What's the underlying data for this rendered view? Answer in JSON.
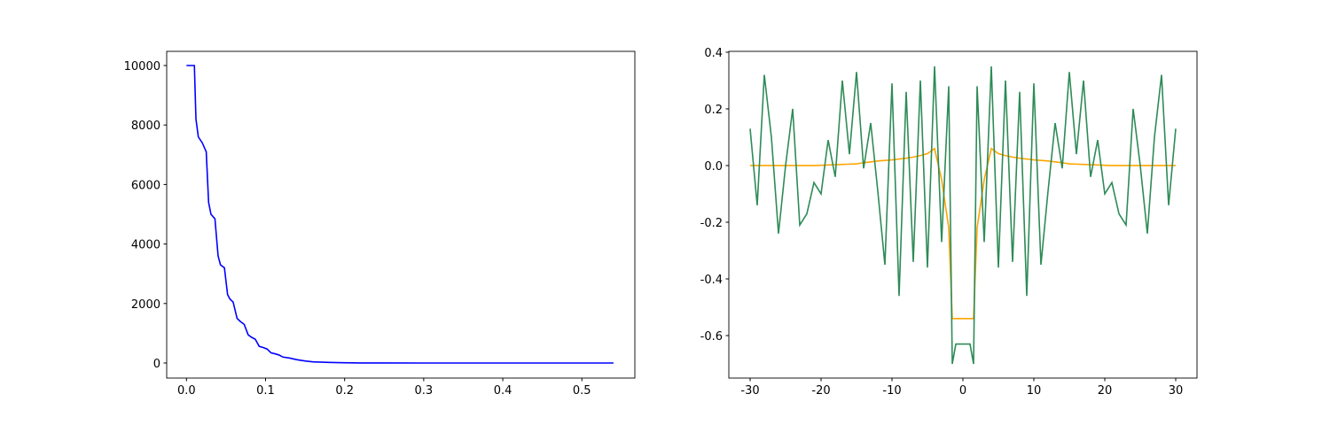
{
  "chart_data": [
    {
      "type": "line",
      "x": [
        0,
        0.01,
        0.012,
        0.015,
        0.02,
        0.025,
        0.028,
        0.031,
        0.036,
        0.04,
        0.043,
        0.048,
        0.052,
        0.055,
        0.059,
        0.064,
        0.068,
        0.073,
        0.078,
        0.082,
        0.087,
        0.092,
        0.097,
        0.102,
        0.107,
        0.112,
        0.117,
        0.122,
        0.13,
        0.14,
        0.15,
        0.16,
        0.18,
        0.2,
        0.22,
        0.25,
        0.3,
        0.4,
        0.54
      ],
      "series": [
        {
          "color": "#0000ff",
          "values": [
            10000,
            10000,
            8200,
            7600,
            7400,
            7100,
            5400,
            5000,
            4850,
            3600,
            3300,
            3200,
            2300,
            2150,
            2050,
            1500,
            1400,
            1300,
            950,
            870,
            800,
            560,
            520,
            470,
            340,
            310,
            270,
            200,
            170,
            110,
            70,
            40,
            20,
            8,
            3,
            1,
            0,
            0,
            0
          ]
        }
      ],
      "xlim": [
        -0.025,
        0.567
      ],
      "ylim": [
        -506,
        10476
      ],
      "xticks": [
        {
          "value": 0,
          "label": "0.0"
        },
        0.1,
        0.2,
        0.3,
        0.4,
        0.5
      ],
      "yticks": [
        0,
        2000,
        4000,
        6000,
        8000,
        10000
      ]
    },
    {
      "type": "line",
      "x": [
        -30,
        -29,
        -28,
        -27,
        -26,
        -25,
        -24,
        -23,
        -22,
        -21,
        -20,
        -19,
        -18,
        -17,
        -16,
        -15,
        -14,
        -13,
        -12,
        -11,
        -10,
        -9,
        -8,
        -7,
        -6,
        -5,
        -4,
        -3,
        -2,
        -1.5,
        -1,
        0,
        1,
        1.5,
        2,
        3,
        4,
        5,
        6,
        7,
        8,
        9,
        10,
        11,
        12,
        13,
        14,
        15,
        16,
        17,
        18,
        19,
        20,
        21,
        22,
        23,
        24,
        25,
        26,
        27,
        28,
        29,
        30
      ],
      "series": [
        {
          "color": "#ffa500",
          "values": [
            0,
            0,
            0,
            0,
            0,
            0,
            0,
            0,
            0,
            0,
            0.001,
            0.002,
            0.003,
            0.004,
            0.005,
            0.006,
            0.01,
            0.013,
            0.016,
            0.018,
            0.02,
            0.023,
            0.026,
            0.03,
            0.035,
            0.042,
            0.06,
            -0.05,
            -0.22,
            -0.54,
            -0.54,
            -0.54,
            -0.54,
            -0.54,
            -0.22,
            -0.05,
            0.06,
            0.042,
            0.035,
            0.03,
            0.026,
            0.023,
            0.02,
            0.018,
            0.016,
            0.013,
            0.01,
            0.006,
            0.005,
            0.004,
            0.003,
            0.002,
            0.001,
            0,
            0,
            0,
            0,
            0,
            0,
            0,
            0,
            0,
            0
          ]
        },
        {
          "color": "#2e8b57",
          "values": [
            0.13,
            -0.14,
            0.32,
            0.1,
            -0.24,
            0.0,
            0.2,
            -0.21,
            -0.17,
            -0.06,
            -0.1,
            0.09,
            -0.04,
            0.3,
            0.04,
            0.33,
            -0.01,
            0.15,
            -0.09,
            -0.35,
            0.29,
            -0.46,
            0.26,
            -0.34,
            0.3,
            -0.36,
            0.35,
            -0.27,
            0.28,
            -0.7,
            -0.63,
            -0.63,
            -0.63,
            -0.7,
            0.28,
            -0.27,
            0.35,
            -0.36,
            0.3,
            -0.34,
            0.26,
            -0.46,
            0.29,
            -0.35,
            -0.09,
            0.15,
            -0.01,
            0.33,
            0.04,
            0.3,
            -0.04,
            0.09,
            -0.1,
            -0.06,
            -0.17,
            -0.21,
            0.2,
            0.0,
            -0.24,
            0.1,
            0.32,
            -0.14,
            0.13
          ]
        }
      ],
      "xlim": [
        -33,
        33
      ],
      "ylim": [
        -0.75,
        0.403
      ],
      "xticks": [
        -30,
        -20,
        -10,
        0,
        10,
        20,
        30
      ],
      "yticks": [
        -0.6,
        -0.4,
        -0.2,
        {
          "value": 0,
          "label": "0.0"
        },
        0.2,
        0.4
      ]
    }
  ]
}
